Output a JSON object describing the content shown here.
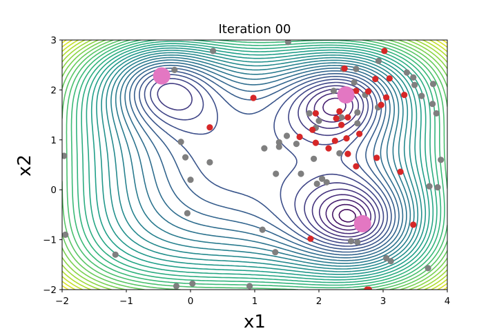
{
  "chart_data": {
    "type": "scatter",
    "title": "Iteration 00",
    "xlabel": "x1",
    "ylabel": "x2",
    "xlim": [
      -2,
      4
    ],
    "ylim": [
      -2,
      3
    ],
    "x_ticks": [
      "−2",
      "−1",
      "0",
      "1",
      "2",
      "3",
      "4"
    ],
    "y_ticks": [
      "−2",
      "−1",
      "0",
      "1",
      "2",
      "3"
    ],
    "grid": false,
    "background": "contour plot of a multimodal objective function (viridis colormap; dark purple near the three minima, yellow in the lower-left corner)",
    "series": [
      {
        "color": "#7f7f7f",
        "points": [
          [
            0.35,
            2.78
          ],
          [
            1.52,
            2.96
          ],
          [
            -0.25,
            2.4
          ],
          [
            2.38,
            2.42
          ],
          [
            2.58,
            2.42
          ],
          [
            2.93,
            2.58
          ],
          [
            3.37,
            2.35
          ],
          [
            3.47,
            2.25
          ],
          [
            3.49,
            2.1
          ],
          [
            3.78,
            2.12
          ],
          [
            2.23,
            1.98
          ],
          [
            2.55,
            2.15
          ],
          [
            2.72,
            1.9
          ],
          [
            3.6,
            1.88
          ],
          [
            3.77,
            1.72
          ],
          [
            2.92,
            1.65
          ],
          [
            3.83,
            1.53
          ],
          [
            1.85,
            1.53
          ],
          [
            2.6,
            1.55
          ],
          [
            2.0,
            1.38
          ],
          [
            2.35,
            1.45
          ],
          [
            2.6,
            1.33
          ],
          [
            1.95,
            1.24
          ],
          [
            1.5,
            1.08
          ],
          [
            1.38,
            0.95
          ],
          [
            1.38,
            0.86
          ],
          [
            1.65,
            0.92
          ],
          [
            1.15,
            0.83
          ],
          [
            -0.15,
            0.96
          ],
          [
            -0.08,
            0.65
          ],
          [
            0.3,
            0.55
          ],
          [
            2.32,
            0.73
          ],
          [
            1.92,
            0.62
          ],
          [
            1.72,
            0.32
          ],
          [
            1.33,
            0.32
          ],
          [
            0.0,
            0.2
          ],
          [
            2.05,
            0.22
          ],
          [
            2.12,
            0.15
          ],
          [
            1.97,
            0.12
          ],
          [
            3.72,
            0.07
          ],
          [
            3.85,
            0.05
          ],
          [
            3.9,
            0.6
          ],
          [
            -0.05,
            -0.47
          ],
          [
            2.6,
            -0.6
          ],
          [
            1.12,
            -0.8
          ],
          [
            -1.95,
            -0.9
          ],
          [
            2.5,
            -1.03
          ],
          [
            1.32,
            -1.25
          ],
          [
            -1.17,
            -1.3
          ],
          [
            3.05,
            -1.37
          ],
          [
            3.12,
            -1.43
          ],
          [
            3.7,
            -1.57
          ],
          [
            -0.22,
            -1.93
          ],
          [
            0.03,
            -1.88
          ],
          [
            0.92,
            -1.93
          ],
          [
            -1.97,
            0.68
          ],
          [
            2.6,
            -1.05
          ]
        ]
      },
      {
        "color": "#d62728",
        "points": [
          [
            3.02,
            2.78
          ],
          [
            3.1,
            2.23
          ],
          [
            2.4,
            2.43
          ],
          [
            2.88,
            2.22
          ],
          [
            2.58,
            1.98
          ],
          [
            2.77,
            1.97
          ],
          [
            3.05,
            1.85
          ],
          [
            3.33,
            1.9
          ],
          [
            2.97,
            1.7
          ],
          [
            0.98,
            1.84
          ],
          [
            1.95,
            1.53
          ],
          [
            2.32,
            1.57
          ],
          [
            2.27,
            1.43
          ],
          [
            2.45,
            1.45
          ],
          [
            2.35,
            1.3
          ],
          [
            2.63,
            1.12
          ],
          [
            0.3,
            1.25
          ],
          [
            1.9,
            1.2
          ],
          [
            1.7,
            1.06
          ],
          [
            2.25,
            0.98
          ],
          [
            2.43,
            1.03
          ],
          [
            1.95,
            0.94
          ],
          [
            2.15,
            0.83
          ],
          [
            2.45,
            0.72
          ],
          [
            2.9,
            0.64
          ],
          [
            2.58,
            0.47
          ],
          [
            3.27,
            0.36
          ],
          [
            3.47,
            -0.7
          ],
          [
            1.87,
            -0.98
          ],
          [
            2.75,
            -2.0
          ],
          [
            2.78,
            -2.0
          ]
        ]
      },
      {
        "color": "#e377c2",
        "marker": "large",
        "points": [
          [
            -0.45,
            2.28
          ],
          [
            2.42,
            1.9
          ],
          [
            2.68,
            -0.68
          ]
        ]
      }
    ]
  }
}
